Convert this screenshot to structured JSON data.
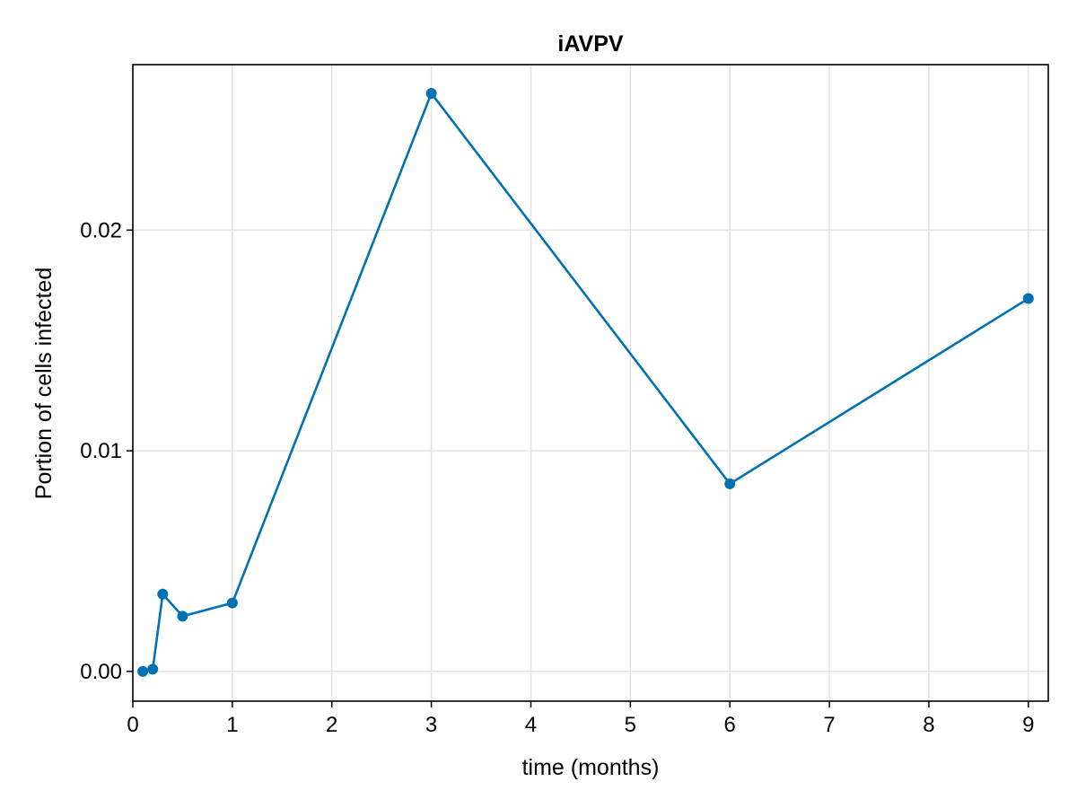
{
  "chart_data": {
    "type": "line",
    "title": "iAVPV",
    "xlabel": "time (months)",
    "ylabel": "Portion of cells infected",
    "xlim": [
      0,
      9.2
    ],
    "ylim": [
      -0.00135,
      0.0275
    ],
    "xticks": [
      0,
      1,
      2,
      3,
      4,
      5,
      6,
      7,
      8,
      9
    ],
    "xtick_labels": [
      "0",
      "1",
      "2",
      "3",
      "4",
      "5",
      "6",
      "7",
      "8",
      "9"
    ],
    "yticks": [
      0.0,
      0.01,
      0.02
    ],
    "ytick_labels": [
      "0.00",
      "0.01",
      "0.02"
    ],
    "grid": true,
    "series": [
      {
        "color": "#0072b2",
        "x": [
          0.1,
          0.2,
          0.3,
          0.5,
          1,
          3,
          6,
          9
        ],
        "y": [
          0.0,
          0.0001,
          0.0035,
          0.0025,
          0.0031,
          0.0262,
          0.0085,
          0.0169
        ]
      }
    ]
  }
}
